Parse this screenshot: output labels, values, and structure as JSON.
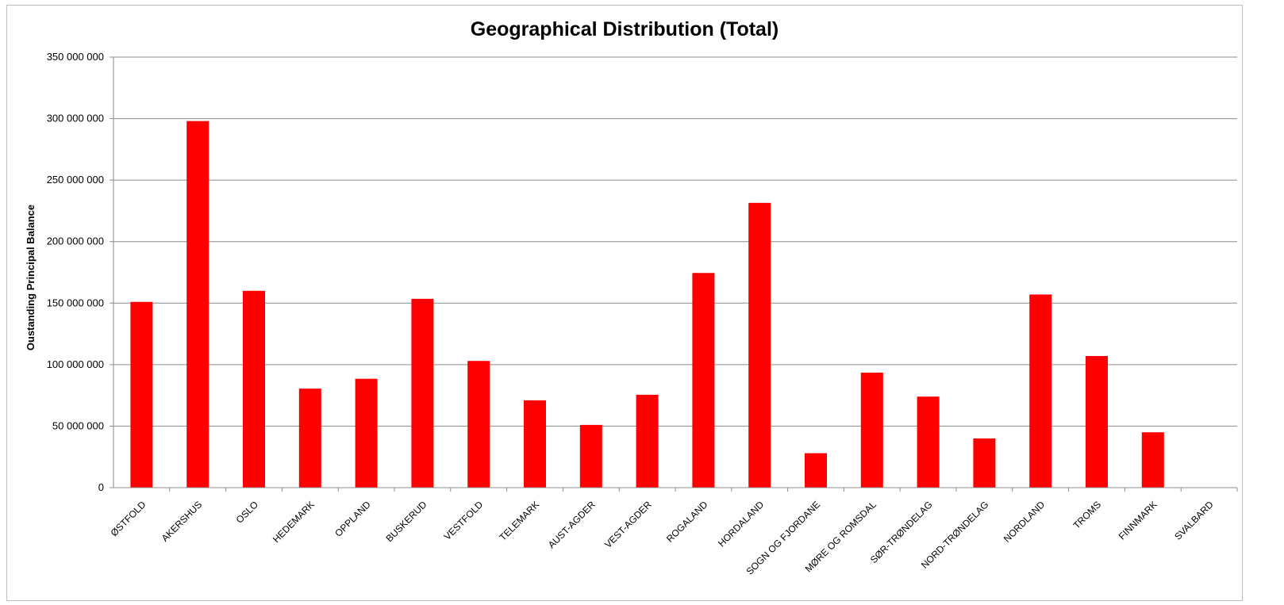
{
  "chart_data": {
    "type": "bar",
    "title": "Geographical Distribution (Total)",
    "xlabel": "",
    "ylabel": "Oustanding Principal Balance",
    "ylim": [
      0,
      350000000
    ],
    "yticks": [
      0,
      50000000,
      100000000,
      150000000,
      200000000,
      250000000,
      300000000,
      350000000
    ],
    "ytick_labels": [
      "0",
      "50 000 000",
      "100 000 000",
      "150 000 000",
      "200 000 000",
      "250 000 000",
      "300 000 000",
      "350 000 000"
    ],
    "grid": true,
    "legend": "none",
    "bar_color": "#ff0000",
    "categories": [
      "ØSTFOLD",
      "AKERSHUS",
      "OSLO",
      "HEDEMARK",
      "OPPLAND",
      "BUSKERUD",
      "VESTFOLD",
      "TELEMARK",
      "AUST-AGDER",
      "VEST-AGDER",
      "ROGALAND",
      "HORDALAND",
      "SOGN OG FJORDANE",
      "MØRE OG ROMSDAL",
      "SØR-TRØNDELAG",
      "NORD-TRØNDELAG",
      "NORDLAND",
      "TROMS",
      "FINNMARK",
      "SVALBARD"
    ],
    "values": [
      151000000,
      298000000,
      160000000,
      80500000,
      88500000,
      153500000,
      103000000,
      71000000,
      51000000,
      75500000,
      174500000,
      231500000,
      28000000,
      93500000,
      74000000,
      40000000,
      157000000,
      107000000,
      45000000,
      0
    ]
  }
}
